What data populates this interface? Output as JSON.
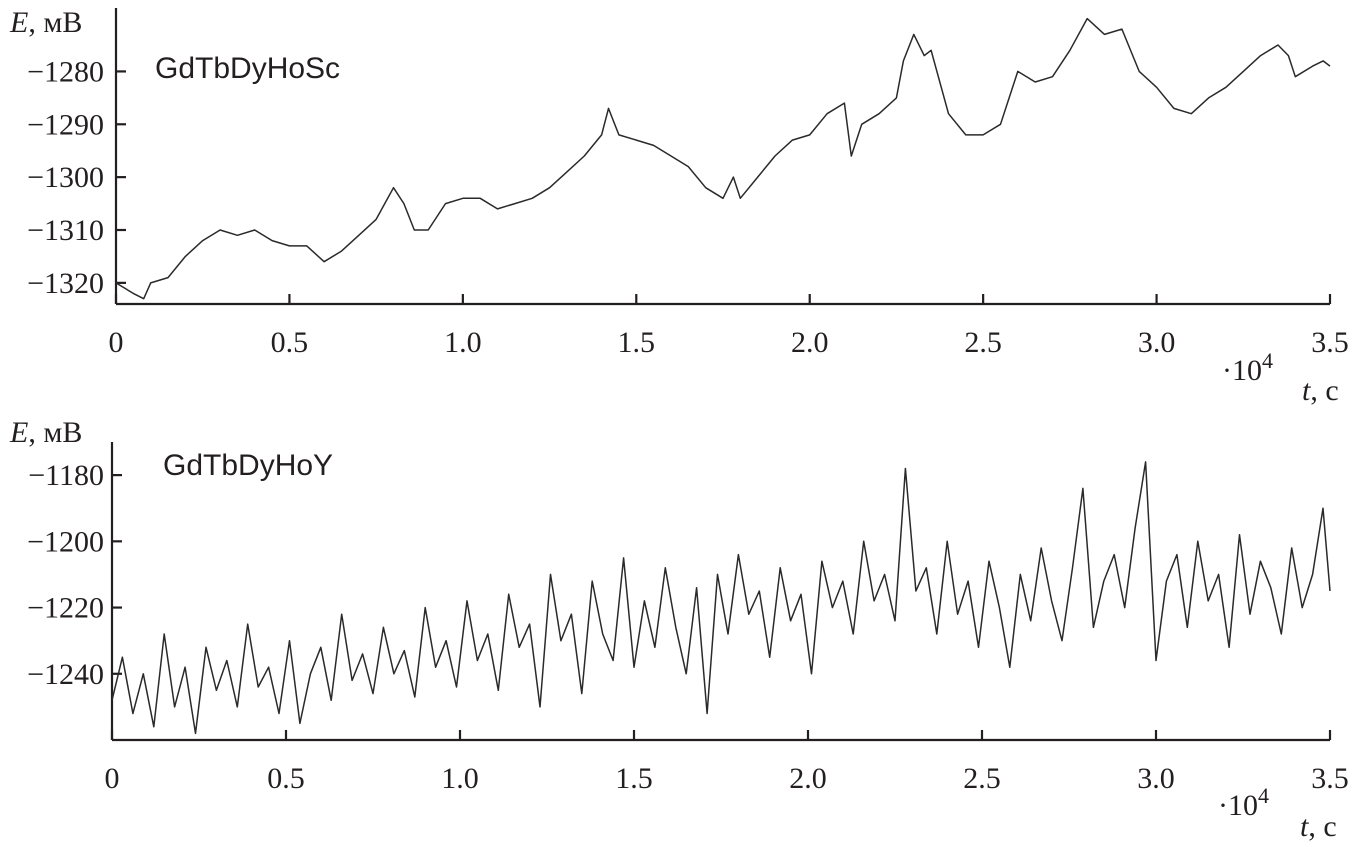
{
  "chart_data": [
    {
      "type": "line",
      "title": "GdTbDyHoSc",
      "xlabel": "t, с",
      "x_multiplier": "·10",
      "x_multiplier_exp": "4",
      "ylabel": "E, мВ",
      "xlim": [
        0,
        35000
      ],
      "ylim": [
        -1324,
        -1268
      ],
      "xticks": [
        0,
        5000,
        10000,
        15000,
        20000,
        25000,
        30000,
        35000
      ],
      "xtick_labels": [
        "0",
        "0.5",
        "1.0",
        "1.5",
        "2.0",
        "2.5",
        "3.0",
        "3.5"
      ],
      "yticks": [
        -1320,
        -1310,
        -1300,
        -1290,
        -1280
      ],
      "ytick_labels": [
        "−1320",
        "−1310",
        "−1300",
        "−1290",
        "−1280"
      ],
      "grid": false,
      "series": [
        {
          "color": "#2a2a2a",
          "x": [
            0,
            500,
            800,
            1000,
            1500,
            2000,
            2500,
            3000,
            3500,
            4000,
            4500,
            5000,
            5500,
            6000,
            6500,
            7000,
            7500,
            8000,
            8300,
            8600,
            9000,
            9500,
            10000,
            10500,
            11000,
            11500,
            12000,
            12500,
            13000,
            13500,
            14000,
            14200,
            14500,
            15000,
            15500,
            16000,
            16500,
            17000,
            17500,
            17800,
            18000,
            18500,
            19000,
            19500,
            20000,
            20500,
            21000,
            21200,
            21500,
            22000,
            22500,
            22700,
            23000,
            23300,
            23500,
            24000,
            24500,
            25000,
            25500,
            26000,
            26500,
            27000,
            27500,
            28000,
            28500,
            29000,
            29500,
            30000,
            30500,
            31000,
            31500,
            32000,
            32500,
            33000,
            33500,
            33800,
            34000,
            34500,
            34800,
            35000
          ],
          "y": [
            -1320,
            -1322,
            -1323,
            -1320,
            -1319,
            -1315,
            -1312,
            -1310,
            -1311,
            -1310,
            -1312,
            -1313,
            -1313,
            -1316,
            -1314,
            -1311,
            -1308,
            -1302,
            -1305,
            -1310,
            -1310,
            -1305,
            -1304,
            -1304,
            -1306,
            -1305,
            -1304,
            -1302,
            -1299,
            -1296,
            -1292,
            -1287,
            -1292,
            -1293,
            -1294,
            -1296,
            -1298,
            -1302,
            -1304,
            -1300,
            -1304,
            -1300,
            -1296,
            -1293,
            -1292,
            -1288,
            -1286,
            -1296,
            -1290,
            -1288,
            -1285,
            -1278,
            -1273,
            -1277,
            -1276,
            -1288,
            -1292,
            -1292,
            -1290,
            -1280,
            -1282,
            -1281,
            -1276,
            -1270,
            -1273,
            -1272,
            -1280,
            -1283,
            -1287,
            -1288,
            -1285,
            -1283,
            -1280,
            -1277,
            -1275,
            -1277,
            -1281,
            -1279,
            -1278,
            -1279
          ]
        }
      ]
    },
    {
      "type": "line",
      "title": "GdTbDyHoY",
      "xlabel": "t, с",
      "x_multiplier": "·10",
      "x_multiplier_exp": "4",
      "ylabel": "E, мВ",
      "xlim": [
        0,
        35000
      ],
      "ylim": [
        -1260,
        -1170
      ],
      "xticks": [
        0,
        5000,
        10000,
        15000,
        20000,
        25000,
        30000,
        35000
      ],
      "xtick_labels": [
        "0",
        "0.5",
        "1.0",
        "1.5",
        "2.0",
        "2.5",
        "3.0",
        "3.5"
      ],
      "yticks": [
        -1240,
        -1220,
        -1200,
        -1180
      ],
      "ytick_labels": [
        "−1240",
        "−1220",
        "−1200",
        "−1180"
      ],
      "grid": false,
      "series": [
        {
          "color": "#2a2a2a",
          "x": [
            0,
            300,
            600,
            900,
            1200,
            1500,
            1800,
            2100,
            2400,
            2700,
            3000,
            3300,
            3600,
            3900,
            4200,
            4500,
            4800,
            5100,
            5400,
            5700,
            6000,
            6300,
            6600,
            6900,
            7200,
            7500,
            7800,
            8100,
            8400,
            8700,
            9000,
            9300,
            9600,
            9900,
            10200,
            10500,
            10800,
            11100,
            11400,
            11700,
            12000,
            12300,
            12600,
            12900,
            13200,
            13500,
            13800,
            14100,
            14400,
            14700,
            15000,
            15300,
            15600,
            15900,
            16200,
            16500,
            16800,
            17100,
            17400,
            17700,
            18000,
            18300,
            18600,
            18900,
            19200,
            19500,
            19800,
            20100,
            20400,
            20700,
            21000,
            21300,
            21600,
            21900,
            22200,
            22500,
            22800,
            23100,
            23400,
            23700,
            24000,
            24300,
            24600,
            24900,
            25200,
            25500,
            25800,
            26100,
            26400,
            26700,
            27000,
            27300,
            27600,
            27900,
            28200,
            28500,
            28800,
            29100,
            29400,
            29700,
            30000,
            30300,
            30600,
            30900,
            31200,
            31500,
            31800,
            32100,
            32400,
            32700,
            33000,
            33300,
            33600,
            33900,
            34200,
            34500,
            34800,
            35000
          ],
          "y": [
            -1248,
            -1235,
            -1252,
            -1240,
            -1256,
            -1228,
            -1250,
            -1238,
            -1258,
            -1232,
            -1245,
            -1236,
            -1250,
            -1225,
            -1244,
            -1238,
            -1252,
            -1230,
            -1255,
            -1240,
            -1232,
            -1248,
            -1222,
            -1242,
            -1234,
            -1246,
            -1226,
            -1240,
            -1233,
            -1247,
            -1220,
            -1238,
            -1230,
            -1244,
            -1218,
            -1236,
            -1228,
            -1245,
            -1216,
            -1232,
            -1225,
            -1250,
            -1210,
            -1230,
            -1222,
            -1246,
            -1212,
            -1228,
            -1236,
            -1205,
            -1238,
            -1218,
            -1232,
            -1208,
            -1226,
            -1240,
            -1214,
            -1252,
            -1210,
            -1228,
            -1204,
            -1222,
            -1215,
            -1235,
            -1208,
            -1224,
            -1216,
            -1240,
            -1206,
            -1220,
            -1212,
            -1228,
            -1200,
            -1218,
            -1210,
            -1224,
            -1178,
            -1215,
            -1208,
            -1228,
            -1200,
            -1222,
            -1212,
            -1232,
            -1206,
            -1220,
            -1238,
            -1210,
            -1224,
            -1202,
            -1218,
            -1230,
            -1208,
            -1184,
            -1226,
            -1212,
            -1204,
            -1220,
            -1196,
            -1176,
            -1236,
            -1212,
            -1204,
            -1226,
            -1200,
            -1218,
            -1210,
            -1232,
            -1198,
            -1222,
            -1206,
            -1214,
            -1228,
            -1202,
            -1220,
            -1210,
            -1190,
            -1215
          ]
        }
      ]
    }
  ]
}
